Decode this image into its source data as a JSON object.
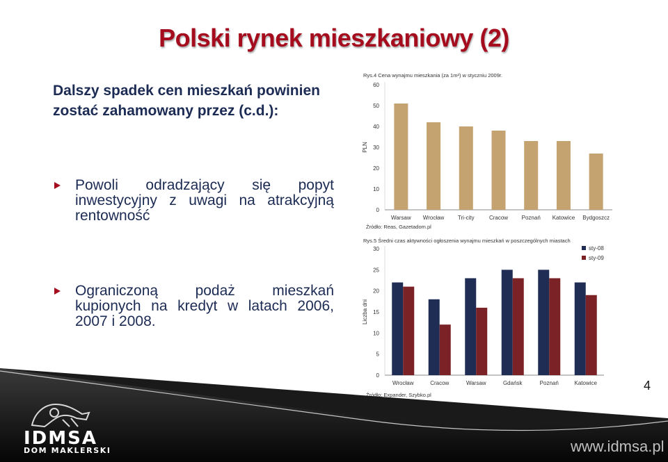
{
  "slide": {
    "title": "Polski rynek mieszkaniowy (2)",
    "intro_line1": "Dalszy spadek cen mieszkań powinien",
    "intro_line2": "zostać zahamowany przez (c.d.):",
    "bullets": [
      {
        "text": "Powoli odradzający się popyt inwestycyjny z uwagi na atrakcyjną rentowność"
      },
      {
        "text": "Ograniczoną podaż mieszkań kupionych na kredyt w latach 2006, 2007 i 2008."
      }
    ],
    "page_number": "4"
  },
  "footer": {
    "logo_name": "IDMSA",
    "logo_subtitle": "DOM MAKLERSKI",
    "website": "www.idmsa.pl"
  },
  "colors": {
    "title": "#a50d1e",
    "text": "#1c2b54",
    "bar_rent": "#c4a370",
    "sty08": "#1f2d55",
    "sty09": "#7b2227"
  },
  "chart_data": [
    {
      "type": "bar",
      "caption": "Rys.4 Cena wynajmu mieszkania (za 1m²) w styczniu 2009r.",
      "ylabel": "PLN",
      "ylim": [
        0,
        60
      ],
      "yticks": [
        0,
        10,
        20,
        30,
        40,
        50,
        60
      ],
      "categories": [
        "Warsaw",
        "Wrocław",
        "Tri-city",
        "Cracow",
        "Poznań",
        "Katowice",
        "Bydgoszcz"
      ],
      "values": [
        51,
        42,
        40,
        38,
        33,
        33,
        27
      ],
      "source": "Źródło: Reas, Gazetadom.pl",
      "grid": false,
      "legend": "none"
    },
    {
      "type": "bar",
      "caption": "Rys.5 Średni czas aktywności ogłoszenia wynajmu mieszkań w poszczególnych miastach",
      "ylabel": "Liczba dni",
      "ylim": [
        0,
        30
      ],
      "yticks": [
        0,
        5,
        10,
        15,
        20,
        25,
        30
      ],
      "categories": [
        "Wrocław",
        "Cracow",
        "Warsaw",
        "Gdańsk",
        "Poznań",
        "Katowice"
      ],
      "series": [
        {
          "name": "sty-08",
          "values": [
            22,
            18,
            23,
            25,
            25,
            22
          ]
        },
        {
          "name": "sty-09",
          "values": [
            21,
            12,
            16,
            23,
            23,
            19
          ]
        }
      ],
      "source": "Źródło: Expander, Szybko.pl",
      "grid": false,
      "legend": "top-right"
    }
  ]
}
